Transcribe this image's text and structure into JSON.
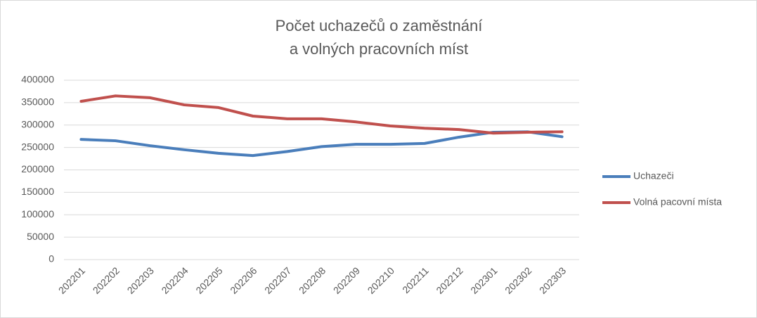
{
  "chart_data": {
    "type": "line",
    "title": [
      "Počet uchazečů o zaměstnání",
      "a volných pracovních míst"
    ],
    "categories": [
      "202201",
      "202202",
      "202203",
      "202204",
      "202205",
      "202206",
      "202207",
      "202208",
      "202209",
      "202210",
      "202211",
      "202212",
      "202301",
      "202302",
      "202303"
    ],
    "series": [
      {
        "name": "Uchazeči",
        "color": "#4a7ebb",
        "values": [
          268000,
          265000,
          254000,
          245000,
          237000,
          232000,
          241000,
          252000,
          257000,
          257000,
          259000,
          273000,
          284000,
          285000,
          274000
        ]
      },
      {
        "name": "Volná pacovní místa",
        "color": "#c0504d",
        "values": [
          353000,
          365000,
          361000,
          345000,
          339000,
          320000,
          314000,
          314000,
          307000,
          298000,
          293000,
          290000,
          282000,
          284000,
          285000
        ]
      }
    ],
    "ylim": [
      0,
      400000
    ],
    "yticks": [
      0,
      50000,
      100000,
      150000,
      200000,
      250000,
      300000,
      350000,
      400000
    ],
    "grid": true,
    "legend": "right"
  }
}
